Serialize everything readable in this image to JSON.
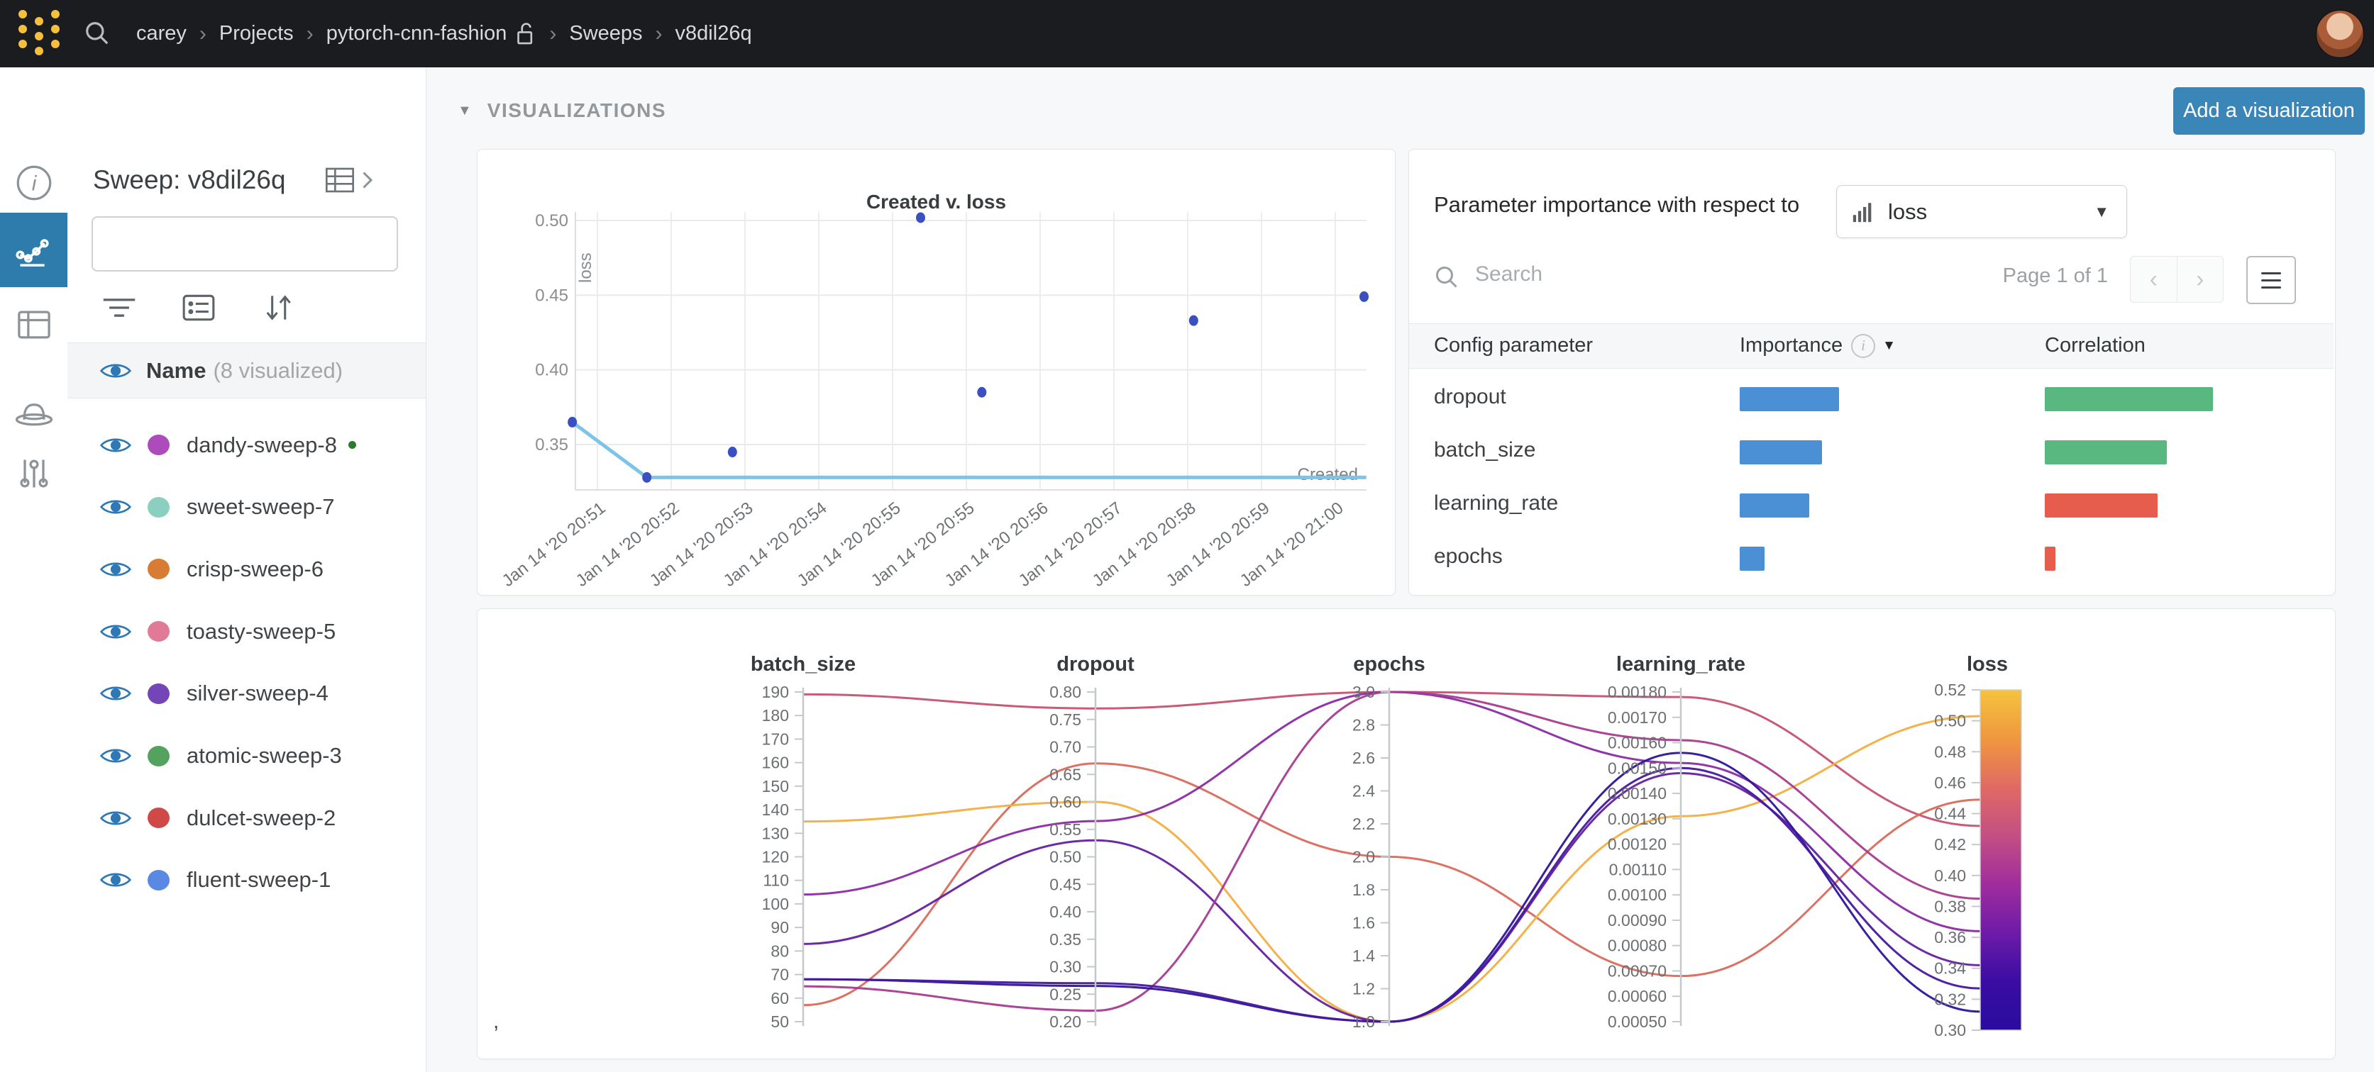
{
  "topbar": {
    "breadcrumb": [
      "carey",
      "Projects",
      "pytorch-cnn-fashion",
      "Sweeps",
      "v8dil26q"
    ],
    "lock_after_index": 2,
    "brand_color": "#f5c13c",
    "bg_color": "#1a1c20"
  },
  "leftrail": {
    "items": [
      "info",
      "line-chart",
      "table",
      "sweep-hat",
      "sliders"
    ],
    "active_index": 1,
    "active_color": "#2e7cab"
  },
  "sidebar": {
    "title": "Sweep: v8dil26q",
    "search_placeholder": "",
    "name_header": "Name",
    "name_count": "(8 visualized)",
    "eye_color": "#2d78b5",
    "runs": [
      {
        "label": "dandy-sweep-8",
        "color": "#ad4bbd",
        "running": true
      },
      {
        "label": "sweet-sweep-7",
        "color": "#8bcfc0",
        "running": false
      },
      {
        "label": "crisp-sweep-6",
        "color": "#d97c33",
        "running": false
      },
      {
        "label": "toasty-sweep-5",
        "color": "#e07a96",
        "running": false
      },
      {
        "label": "silver-sweep-4",
        "color": "#7246b6",
        "running": false
      },
      {
        "label": "atomic-sweep-3",
        "color": "#55a25f",
        "running": false
      },
      {
        "label": "dulcet-sweep-2",
        "color": "#cf4a47",
        "running": false
      },
      {
        "label": "fluent-sweep-1",
        "color": "#5989e3",
        "running": false
      }
    ]
  },
  "main": {
    "section_label": "VISUALIZATIONS",
    "add_button": "Add a visualization"
  },
  "importance": {
    "header": "Parameter importance with respect to",
    "dropdown_value": "loss",
    "search_placeholder": "Search",
    "page_label": "Page 1 of 1",
    "columns": [
      "Config parameter",
      "Importance",
      "Correlation"
    ],
    "importance_color": "#4b8fd4",
    "positive_color": "#58b87f",
    "negative_color": "#e65c4d",
    "rows": [
      {
        "param": "dropout",
        "importance": 0.4,
        "correlation": 0.55,
        "sign": "positive"
      },
      {
        "param": "batch_size",
        "importance": 0.33,
        "correlation": 0.4,
        "sign": "positive"
      },
      {
        "param": "learning_rate",
        "importance": 0.28,
        "correlation": 0.37,
        "sign": "negative"
      },
      {
        "param": "epochs",
        "importance": 0.1,
        "correlation": 0.035,
        "sign": "negative"
      }
    ]
  },
  "stray_comma": ",",
  "chart_data": [
    {
      "type": "scatter",
      "title": "Created v. loss",
      "xlabel": "Created",
      "ylabel": "loss",
      "x_tick_labels": [
        "Jan 14 '20 20:51",
        "Jan 14 '20 20:52",
        "Jan 14 '20 20:53",
        "Jan 14 '20 20:54",
        "Jan 14 '20 20:55",
        "Jan 14 '20 20:55",
        "Jan 14 '20 20:56",
        "Jan 14 '20 20:57",
        "Jan 14 '20 20:58",
        "Jan 14 '20 20:59",
        "Jan 14 '20 21:00"
      ],
      "y_tick_labels": [
        "0.50",
        "0.45",
        "0.40",
        "0.35"
      ],
      "ylim": [
        0.319,
        0.505
      ],
      "point_color": "#3a50c0",
      "line_color": "#7cc4e8",
      "points": [
        {
          "t": -0.34,
          "loss": 0.365
        },
        {
          "t": 0.67,
          "loss": 0.328
        },
        {
          "t": 1.83,
          "loss": 0.345
        },
        {
          "t": 4.38,
          "loss": 0.502
        },
        {
          "t": 5.21,
          "loss": 0.385
        },
        {
          "t": 8.08,
          "loss": 0.433
        },
        {
          "t": 10.39,
          "loss": 0.449
        }
      ],
      "best_line": [
        {
          "t": -0.34,
          "loss": 0.365
        },
        {
          "t": 0.67,
          "loss": 0.328
        },
        {
          "t": 10.42,
          "loss": 0.328
        }
      ]
    },
    {
      "type": "parallel-coordinates",
      "axes": [
        {
          "key": "batch_size",
          "title": "batch_size",
          "min": 50,
          "max": 190,
          "ticks": [
            "190",
            "180",
            "170",
            "160",
            "150",
            "140",
            "130",
            "120",
            "110",
            "100",
            "90",
            "80",
            "70",
            "60",
            "50"
          ]
        },
        {
          "key": "dropout",
          "title": "dropout",
          "min": 0.2,
          "max": 0.8,
          "ticks": [
            "0.80",
            "0.75",
            "0.70",
            "0.65",
            "0.60",
            "0.55",
            "0.50",
            "0.45",
            "0.40",
            "0.35",
            "0.30",
            "0.25",
            "0.20"
          ]
        },
        {
          "key": "epochs",
          "title": "epochs",
          "min": 1.0,
          "max": 3.0,
          "ticks": [
            "3.0",
            "2.8",
            "2.6",
            "2.4",
            "2.2",
            "2.0",
            "1.8",
            "1.6",
            "1.4",
            "1.2",
            "1.0"
          ]
        },
        {
          "key": "learning_rate",
          "title": "learning_rate",
          "min": 0.0005,
          "max": 0.0018,
          "ticks": [
            "0.00180",
            "0.00170",
            "0.00160",
            "0.00150",
            "0.00140",
            "0.00130",
            "0.00120",
            "0.00110",
            "0.00100",
            "0.00090",
            "0.00080",
            "0.00070",
            "0.00060",
            "0.00050"
          ]
        },
        {
          "key": "loss",
          "title": "loss",
          "min": 0.3,
          "max": 0.52,
          "ticks": [
            "0.52",
            "0.50",
            "0.48",
            "0.46",
            "0.44",
            "0.42",
            "0.40",
            "0.38",
            "0.36",
            "0.34",
            "0.32",
            "0.30"
          ]
        }
      ],
      "colorbar": {
        "metric": "loss",
        "top_color": "#f6c33d",
        "bottom_color": "#2a0ba0",
        "stops": [
          "#f6c33d",
          "#f0973f",
          "#e06a63",
          "#c34f83",
          "#a02d9d",
          "#6d1ba8",
          "#3a0ca3",
          "#2a0ba0"
        ]
      },
      "runs": [
        {
          "batch_size": 189,
          "dropout": 0.77,
          "epochs": 3,
          "learning_rate": 0.00178,
          "loss": 0.432,
          "color": "#c65272"
        },
        {
          "batch_size": 57,
          "dropout": 0.67,
          "epochs": 2,
          "learning_rate": 0.00068,
          "loss": 0.449,
          "color": "#d96a5c"
        },
        {
          "batch_size": 135,
          "dropout": 0.6,
          "epochs": 1,
          "learning_rate": 0.00131,
          "loss": 0.503,
          "color": "#f2ae41"
        },
        {
          "batch_size": 104,
          "dropout": 0.565,
          "epochs": 3,
          "learning_rate": 0.00152,
          "loss": 0.364,
          "color": "#8a2ba4"
        },
        {
          "batch_size": 83,
          "dropout": 0.53,
          "epochs": 1,
          "learning_rate": 0.00148,
          "loss": 0.342,
          "color": "#64209f"
        },
        {
          "batch_size": 65,
          "dropout": 0.22,
          "epochs": 3,
          "learning_rate": 0.00161,
          "loss": 0.385,
          "color": "#a73b90"
        },
        {
          "batch_size": 68,
          "dropout": 0.265,
          "epochs": 1,
          "learning_rate": 0.00156,
          "loss": 0.312,
          "color": "#2d149c"
        },
        {
          "batch_size": 68,
          "dropout": 0.27,
          "epochs": 1,
          "learning_rate": 0.0015,
          "loss": 0.327,
          "color": "#46189e"
        }
      ]
    }
  ]
}
